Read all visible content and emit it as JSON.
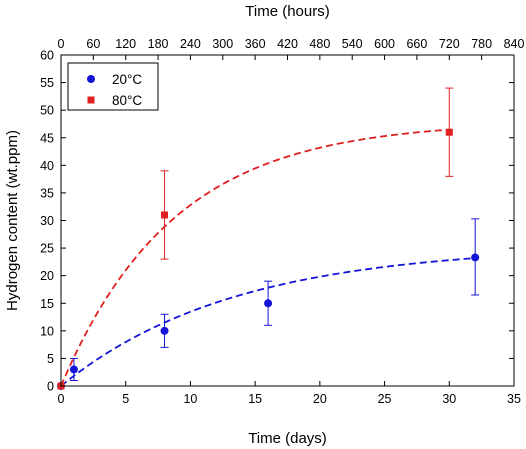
{
  "chart_data": {
    "type": "scatter",
    "xlabel": "Time (days)",
    "x2label": "Time (hours)",
    "ylabel": "Hydrogen content (wt.ppm)",
    "xlim": [
      0,
      35
    ],
    "x2lim": [
      0,
      840
    ],
    "ylim": [
      0,
      60
    ],
    "x_ticks": [
      0,
      5,
      10,
      15,
      20,
      25,
      30,
      35
    ],
    "x2_ticks": [
      0,
      60,
      120,
      180,
      240,
      300,
      360,
      420,
      480,
      540,
      600,
      660,
      720,
      780,
      840
    ],
    "y_ticks": [
      0,
      5,
      10,
      15,
      20,
      25,
      30,
      35,
      40,
      45,
      50,
      55,
      60
    ],
    "legend_position": "top-left",
    "series": [
      {
        "name": "20°C",
        "color": "#1414d8",
        "marker": "circle",
        "x": [
          0,
          1,
          8,
          16,
          32
        ],
        "y": [
          0,
          3,
          10,
          15,
          23.3
        ],
        "yerr_low": [
          0,
          2,
          3,
          4,
          6.8
        ],
        "yerr_high": [
          0,
          2,
          3,
          4,
          7
        ],
        "fit": {
          "style": "dashed",
          "plateau": 25.5,
          "rate": 0.075,
          "x_end": 32
        }
      },
      {
        "name": "80°C",
        "color": "#e02020",
        "marker": "square",
        "x": [
          0,
          8,
          30
        ],
        "y": [
          0,
          31,
          46
        ],
        "yerr_low": [
          0,
          8,
          8
        ],
        "yerr_high": [
          0,
          8,
          8
        ],
        "fit": {
          "style": "dashed",
          "plateau": 48,
          "rate": 0.115,
          "x_end": 30
        }
      }
    ]
  }
}
